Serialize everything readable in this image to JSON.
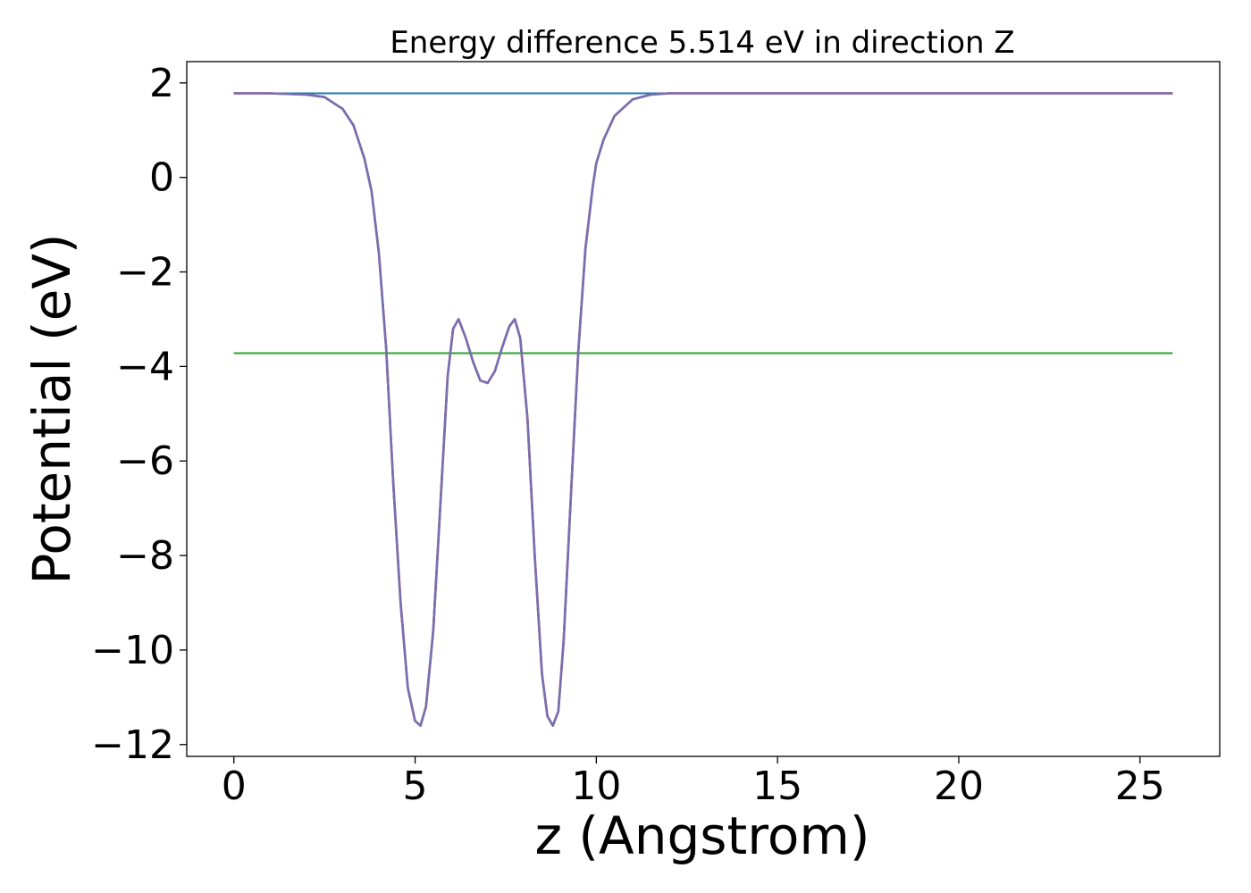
{
  "chart_data": {
    "type": "line",
    "title": "Energy difference 5.514 eV in direction Z",
    "xlabel": "z (Angstrom)",
    "ylabel": "Potential (eV)",
    "xlim": [
      -1.3,
      27.2
    ],
    "ylim": [
      -12.25,
      2.45
    ],
    "xticks": [
      0,
      5,
      10,
      15,
      20,
      25
    ],
    "yticks": [
      2,
      0,
      -2,
      -4,
      -6,
      -8,
      -10,
      -12
    ],
    "xtick_labels": [
      "0",
      "5",
      "10",
      "15",
      "20",
      "25"
    ],
    "ytick_labels": [
      "2",
      "0",
      "−2",
      "−4",
      "−6",
      "−8",
      "−10",
      "−12"
    ],
    "grid": false,
    "legend": "none",
    "series": [
      {
        "color": "#1f77b4",
        "style": "horizontal",
        "x": [
          0.0,
          25.9
        ],
        "y": [
          1.78,
          1.78
        ]
      },
      {
        "color": "#2ca02c",
        "style": "horizontal",
        "x": [
          0.0,
          25.9
        ],
        "y": [
          -3.72,
          -3.72
        ]
      },
      {
        "color": "#d62728",
        "x": [
          0.0,
          1.0,
          2.0,
          2.5,
          3.0,
          3.3,
          3.6,
          3.8,
          4.0,
          4.2,
          4.4,
          4.6,
          4.8,
          5.0,
          5.15,
          5.3,
          5.5,
          5.7,
          5.9,
          6.05,
          6.2,
          6.4,
          6.6,
          6.8,
          7.0,
          7.2,
          7.4,
          7.6,
          7.75,
          7.9,
          8.1,
          8.3,
          8.5,
          8.65,
          8.8,
          8.95,
          9.1,
          9.3,
          9.5,
          9.7,
          9.9,
          10.0,
          10.2,
          10.5,
          11.0,
          11.5,
          12.0,
          13.0,
          15.0,
          20.0,
          25.9
        ],
        "y": [
          1.78,
          1.78,
          1.75,
          1.7,
          1.45,
          1.1,
          0.4,
          -0.3,
          -1.6,
          -3.6,
          -6.5,
          -9.0,
          -10.8,
          -11.5,
          -11.6,
          -11.2,
          -9.6,
          -6.9,
          -4.2,
          -3.2,
          -3.0,
          -3.4,
          -3.9,
          -4.3,
          -4.35,
          -4.1,
          -3.6,
          -3.15,
          -3.0,
          -3.4,
          -5.1,
          -8.0,
          -10.5,
          -11.4,
          -11.6,
          -11.3,
          -9.8,
          -6.7,
          -3.7,
          -1.5,
          -0.2,
          0.3,
          0.8,
          1.3,
          1.65,
          1.75,
          1.78,
          1.78,
          1.78,
          1.78,
          1.78
        ]
      },
      {
        "color": "#7570b3",
        "style": "overlay",
        "x": [
          0.0,
          1.0,
          2.0,
          2.5,
          3.0,
          3.3,
          3.6,
          3.8,
          4.0,
          4.2,
          4.4,
          4.6,
          4.8,
          5.0,
          5.15,
          5.3,
          5.5,
          5.7,
          5.9,
          6.05,
          6.2,
          6.4,
          6.6,
          6.8,
          7.0,
          7.2,
          7.4,
          7.6,
          7.75,
          7.9,
          8.1,
          8.3,
          8.5,
          8.65,
          8.8,
          8.95,
          9.1,
          9.3,
          9.5,
          9.7,
          9.9,
          10.0,
          10.2,
          10.5,
          11.0,
          11.5,
          12.0,
          13.0,
          15.0,
          20.0,
          25.9
        ],
        "y": [
          1.78,
          1.78,
          1.75,
          1.7,
          1.45,
          1.1,
          0.4,
          -0.3,
          -1.6,
          -3.6,
          -6.5,
          -9.0,
          -10.8,
          -11.5,
          -11.6,
          -11.2,
          -9.6,
          -6.9,
          -4.2,
          -3.2,
          -3.0,
          -3.4,
          -3.9,
          -4.3,
          -4.35,
          -4.1,
          -3.6,
          -3.15,
          -3.0,
          -3.4,
          -5.1,
          -8.0,
          -10.5,
          -11.4,
          -11.6,
          -11.3,
          -9.8,
          -6.7,
          -3.7,
          -1.5,
          -0.2,
          0.3,
          0.8,
          1.3,
          1.65,
          1.75,
          1.78,
          1.78,
          1.78,
          1.78,
          1.78
        ]
      }
    ]
  }
}
